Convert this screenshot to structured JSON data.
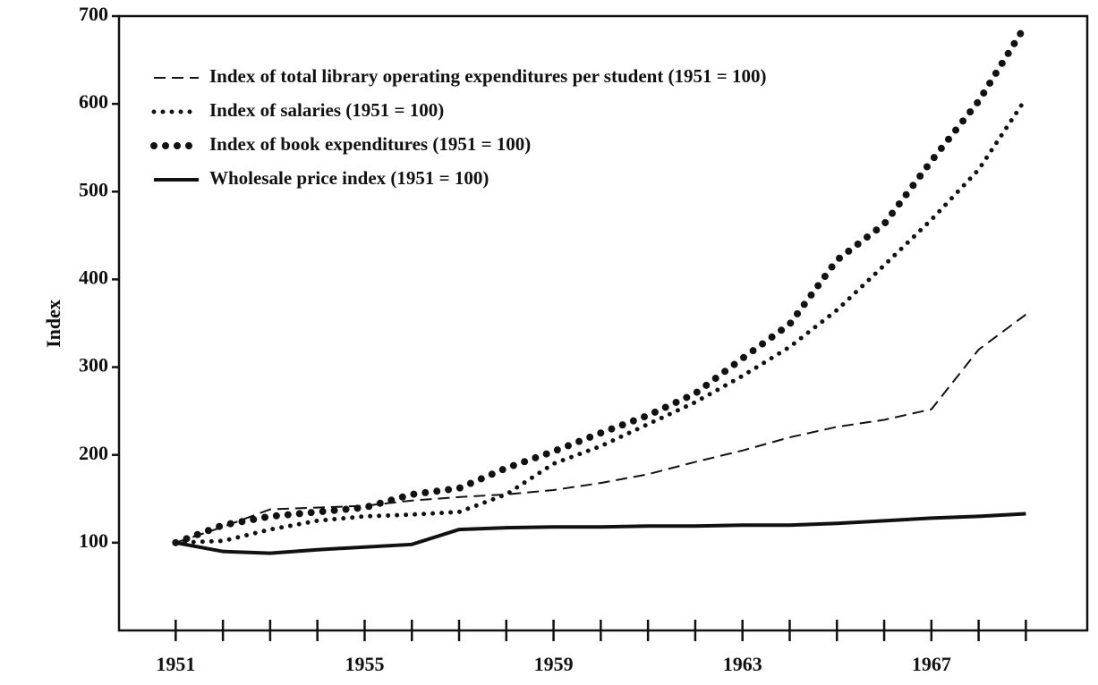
{
  "chart_data": {
    "type": "line",
    "ylabel": "Index",
    "x": [
      1951,
      1952,
      1953,
      1954,
      1955,
      1956,
      1957,
      1958,
      1959,
      1960,
      1961,
      1962,
      1963,
      1964,
      1965,
      1966,
      1967,
      1968,
      1969
    ],
    "series": [
      {
        "name": "Index of total library operating expenditures per student (1951 = 100)",
        "color": "#111111",
        "style": "dashed",
        "values": [
          100,
          118,
          138,
          140,
          142,
          148,
          152,
          155,
          160,
          168,
          178,
          192,
          205,
          220,
          232,
          240,
          252,
          320,
          360
        ]
      },
      {
        "name": "Index of salaries (1951 = 100)",
        "color": "#111111",
        "style": "dotted",
        "values": [
          100,
          102,
          115,
          125,
          130,
          132,
          135,
          155,
          190,
          210,
          235,
          260,
          290,
          323,
          365,
          416,
          468,
          525,
          606
        ]
      },
      {
        "name": "Index of book expenditures (1951 = 100)",
        "color": "#111111",
        "style": "heavy-dotted",
        "values": [
          100,
          120,
          130,
          135,
          140,
          155,
          162,
          185,
          204,
          225,
          245,
          270,
          310,
          349,
          422,
          463,
          535,
          603,
          690
        ]
      },
      {
        "name": "Wholesale price index (1951 = 100)",
        "color": "#111111",
        "style": "solid",
        "values": [
          100,
          90,
          88,
          92,
          95,
          98,
          115,
          117,
          118,
          118,
          119,
          119,
          120,
          120,
          122,
          125,
          128,
          130,
          133
        ]
      }
    ],
    "xlim": [
      1949.8,
      1970.3
    ],
    "xticks": [
      1951,
      1955,
      1959,
      1963,
      1967
    ],
    "xminorticks": [
      1952,
      1953,
      1954,
      1956,
      1957,
      1958,
      1960,
      1961,
      1962,
      1964,
      1965,
      1966,
      1968,
      1969
    ],
    "ylim": [
      0,
      700
    ],
    "yticks": [
      100,
      200,
      300,
      400,
      500,
      600,
      700
    ],
    "legend": "upper left"
  }
}
